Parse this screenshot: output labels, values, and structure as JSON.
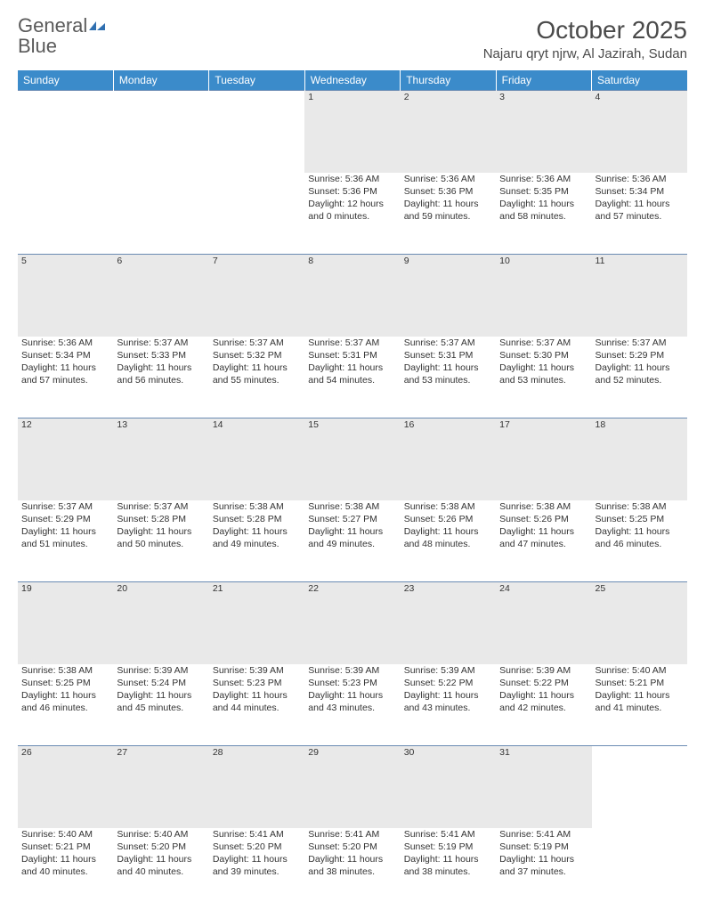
{
  "brand": {
    "word1": "General",
    "word2": "Blue"
  },
  "title": "October 2025",
  "location": "Najaru qryt njrw, Al Jazirah, Sudan",
  "colors": {
    "header_bg": "#3b8bca",
    "header_text": "#ffffff",
    "daynum_bg": "#e9e9e9",
    "row_divider": "#6a8bb3",
    "text": "#333333",
    "logo_gray": "#5a5a5a",
    "logo_blue": "#2f6fb0"
  },
  "weekdays": [
    "Sunday",
    "Monday",
    "Tuesday",
    "Wednesday",
    "Thursday",
    "Friday",
    "Saturday"
  ],
  "weeks": [
    [
      null,
      null,
      null,
      {
        "day": "1",
        "sunrise": "Sunrise: 5:36 AM",
        "sunset": "Sunset: 5:36 PM",
        "daylight1": "Daylight: 12 hours",
        "daylight2": "and 0 minutes."
      },
      {
        "day": "2",
        "sunrise": "Sunrise: 5:36 AM",
        "sunset": "Sunset: 5:36 PM",
        "daylight1": "Daylight: 11 hours",
        "daylight2": "and 59 minutes."
      },
      {
        "day": "3",
        "sunrise": "Sunrise: 5:36 AM",
        "sunset": "Sunset: 5:35 PM",
        "daylight1": "Daylight: 11 hours",
        "daylight2": "and 58 minutes."
      },
      {
        "day": "4",
        "sunrise": "Sunrise: 5:36 AM",
        "sunset": "Sunset: 5:34 PM",
        "daylight1": "Daylight: 11 hours",
        "daylight2": "and 57 minutes."
      }
    ],
    [
      {
        "day": "5",
        "sunrise": "Sunrise: 5:36 AM",
        "sunset": "Sunset: 5:34 PM",
        "daylight1": "Daylight: 11 hours",
        "daylight2": "and 57 minutes."
      },
      {
        "day": "6",
        "sunrise": "Sunrise: 5:37 AM",
        "sunset": "Sunset: 5:33 PM",
        "daylight1": "Daylight: 11 hours",
        "daylight2": "and 56 minutes."
      },
      {
        "day": "7",
        "sunrise": "Sunrise: 5:37 AM",
        "sunset": "Sunset: 5:32 PM",
        "daylight1": "Daylight: 11 hours",
        "daylight2": "and 55 minutes."
      },
      {
        "day": "8",
        "sunrise": "Sunrise: 5:37 AM",
        "sunset": "Sunset: 5:31 PM",
        "daylight1": "Daylight: 11 hours",
        "daylight2": "and 54 minutes."
      },
      {
        "day": "9",
        "sunrise": "Sunrise: 5:37 AM",
        "sunset": "Sunset: 5:31 PM",
        "daylight1": "Daylight: 11 hours",
        "daylight2": "and 53 minutes."
      },
      {
        "day": "10",
        "sunrise": "Sunrise: 5:37 AM",
        "sunset": "Sunset: 5:30 PM",
        "daylight1": "Daylight: 11 hours",
        "daylight2": "and 53 minutes."
      },
      {
        "day": "11",
        "sunrise": "Sunrise: 5:37 AM",
        "sunset": "Sunset: 5:29 PM",
        "daylight1": "Daylight: 11 hours",
        "daylight2": "and 52 minutes."
      }
    ],
    [
      {
        "day": "12",
        "sunrise": "Sunrise: 5:37 AM",
        "sunset": "Sunset: 5:29 PM",
        "daylight1": "Daylight: 11 hours",
        "daylight2": "and 51 minutes."
      },
      {
        "day": "13",
        "sunrise": "Sunrise: 5:37 AM",
        "sunset": "Sunset: 5:28 PM",
        "daylight1": "Daylight: 11 hours",
        "daylight2": "and 50 minutes."
      },
      {
        "day": "14",
        "sunrise": "Sunrise: 5:38 AM",
        "sunset": "Sunset: 5:28 PM",
        "daylight1": "Daylight: 11 hours",
        "daylight2": "and 49 minutes."
      },
      {
        "day": "15",
        "sunrise": "Sunrise: 5:38 AM",
        "sunset": "Sunset: 5:27 PM",
        "daylight1": "Daylight: 11 hours",
        "daylight2": "and 49 minutes."
      },
      {
        "day": "16",
        "sunrise": "Sunrise: 5:38 AM",
        "sunset": "Sunset: 5:26 PM",
        "daylight1": "Daylight: 11 hours",
        "daylight2": "and 48 minutes."
      },
      {
        "day": "17",
        "sunrise": "Sunrise: 5:38 AM",
        "sunset": "Sunset: 5:26 PM",
        "daylight1": "Daylight: 11 hours",
        "daylight2": "and 47 minutes."
      },
      {
        "day": "18",
        "sunrise": "Sunrise: 5:38 AM",
        "sunset": "Sunset: 5:25 PM",
        "daylight1": "Daylight: 11 hours",
        "daylight2": "and 46 minutes."
      }
    ],
    [
      {
        "day": "19",
        "sunrise": "Sunrise: 5:38 AM",
        "sunset": "Sunset: 5:25 PM",
        "daylight1": "Daylight: 11 hours",
        "daylight2": "and 46 minutes."
      },
      {
        "day": "20",
        "sunrise": "Sunrise: 5:39 AM",
        "sunset": "Sunset: 5:24 PM",
        "daylight1": "Daylight: 11 hours",
        "daylight2": "and 45 minutes."
      },
      {
        "day": "21",
        "sunrise": "Sunrise: 5:39 AM",
        "sunset": "Sunset: 5:23 PM",
        "daylight1": "Daylight: 11 hours",
        "daylight2": "and 44 minutes."
      },
      {
        "day": "22",
        "sunrise": "Sunrise: 5:39 AM",
        "sunset": "Sunset: 5:23 PM",
        "daylight1": "Daylight: 11 hours",
        "daylight2": "and 43 minutes."
      },
      {
        "day": "23",
        "sunrise": "Sunrise: 5:39 AM",
        "sunset": "Sunset: 5:22 PM",
        "daylight1": "Daylight: 11 hours",
        "daylight2": "and 43 minutes."
      },
      {
        "day": "24",
        "sunrise": "Sunrise: 5:39 AM",
        "sunset": "Sunset: 5:22 PM",
        "daylight1": "Daylight: 11 hours",
        "daylight2": "and 42 minutes."
      },
      {
        "day": "25",
        "sunrise": "Sunrise: 5:40 AM",
        "sunset": "Sunset: 5:21 PM",
        "daylight1": "Daylight: 11 hours",
        "daylight2": "and 41 minutes."
      }
    ],
    [
      {
        "day": "26",
        "sunrise": "Sunrise: 5:40 AM",
        "sunset": "Sunset: 5:21 PM",
        "daylight1": "Daylight: 11 hours",
        "daylight2": "and 40 minutes."
      },
      {
        "day": "27",
        "sunrise": "Sunrise: 5:40 AM",
        "sunset": "Sunset: 5:20 PM",
        "daylight1": "Daylight: 11 hours",
        "daylight2": "and 40 minutes."
      },
      {
        "day": "28",
        "sunrise": "Sunrise: 5:41 AM",
        "sunset": "Sunset: 5:20 PM",
        "daylight1": "Daylight: 11 hours",
        "daylight2": "and 39 minutes."
      },
      {
        "day": "29",
        "sunrise": "Sunrise: 5:41 AM",
        "sunset": "Sunset: 5:20 PM",
        "daylight1": "Daylight: 11 hours",
        "daylight2": "and 38 minutes."
      },
      {
        "day": "30",
        "sunrise": "Sunrise: 5:41 AM",
        "sunset": "Sunset: 5:19 PM",
        "daylight1": "Daylight: 11 hours",
        "daylight2": "and 38 minutes."
      },
      {
        "day": "31",
        "sunrise": "Sunrise: 5:41 AM",
        "sunset": "Sunset: 5:19 PM",
        "daylight1": "Daylight: 11 hours",
        "daylight2": "and 37 minutes."
      },
      null
    ]
  ]
}
